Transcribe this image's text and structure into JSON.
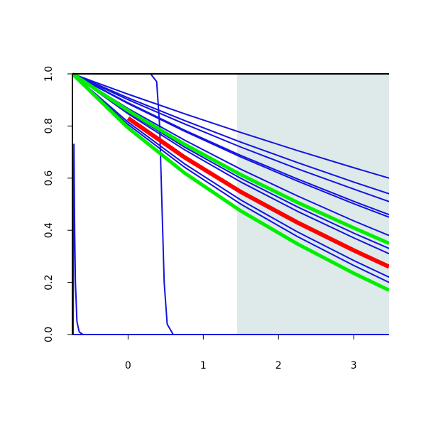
{
  "chart_data": {
    "type": "line",
    "xlim": [
      -0.74,
      3.47
    ],
    "ylim": [
      0,
      1
    ],
    "xticks": [
      0,
      1,
      2,
      3
    ],
    "yticks": [
      {
        "value": 0,
        "label": "0.0"
      },
      {
        "value": 0.2,
        "label": "0.2"
      },
      {
        "value": 0.4,
        "label": "0.4"
      },
      {
        "value": 0.6,
        "label": "0.6"
      },
      {
        "value": 0.8,
        "label": "0.8"
      },
      {
        "value": 1,
        "label": "1.0"
      }
    ],
    "shade_xlim": [
      1.45,
      3.47
    ],
    "shade_color": "#deeaea",
    "x": [
      -0.74,
      0,
      0.75,
      1.5,
      2.25,
      3,
      3.47
    ],
    "series": [
      {
        "color": "#1414e0",
        "width": 2,
        "values": [
          1,
          0.922,
          0.847,
          0.775,
          0.706,
          0.64,
          0.6
        ]
      },
      {
        "color": "#1414e0",
        "width": 2,
        "values": [
          1,
          0.908,
          0.821,
          0.738,
          0.66,
          0.585,
          0.54
        ]
      },
      {
        "color": "#1414e0",
        "width": 2,
        "values": [
          1,
          0.901,
          0.808,
          0.719,
          0.636,
          0.558,
          0.51
        ]
      },
      {
        "color": "#1414e0",
        "width": 2,
        "values": [
          1,
          0.889,
          0.784,
          0.687,
          0.597,
          0.511,
          0.46
        ]
      },
      {
        "color": "#1414e0",
        "width": 2,
        "values": [
          1,
          0.886,
          0.78,
          0.681,
          0.589,
          0.502,
          0.45
        ]
      },
      {
        "color": "#1414e0",
        "width": 2,
        "values": [
          1,
          0.867,
          0.746,
          0.634,
          0.532,
          0.436,
          0.38
        ]
      },
      {
        "color": "#1414e0",
        "width": 2,
        "values": [
          1,
          0.853,
          0.719,
          0.599,
          0.49,
          0.389,
          0.33
        ]
      },
      {
        "color": "#1414e0",
        "width": 2,
        "values": [
          1,
          0.847,
          0.709,
          0.585,
          0.473,
          0.371,
          0.31
        ]
      },
      {
        "color": "#1414e0",
        "width": 2,
        "values": [
          1,
          0.815,
          0.655,
          0.516,
          0.394,
          0.284,
          0.22
        ]
      },
      {
        "color": "#1414e0",
        "width": 2,
        "values": [
          1,
          0.806,
          0.642,
          0.5,
          0.376,
          0.265,
          0.2
        ]
      },
      {
        "color": "#1414e0",
        "width": 2,
        "values": [
          0,
          0,
          0,
          0,
          0,
          0,
          0
        ]
      },
      {
        "color": "#1414e0",
        "width": 2,
        "x": [
          -0.74,
          0.3,
          0.38,
          0.42,
          0.45,
          0.48,
          0.52,
          0.6,
          3.47
        ],
        "values": [
          1,
          1,
          0.97,
          0.8,
          0.5,
          0.2,
          0.04,
          0,
          0
        ]
      },
      {
        "color": "#1414e0",
        "width": 2,
        "x": [
          -0.73,
          -0.72,
          -0.71,
          -0.7,
          -0.68,
          -0.65,
          -0.6,
          3.47
        ],
        "values": [
          0,
          0.73,
          0.4,
          0.2,
          0.05,
          0.01,
          0,
          0
        ]
      },
      {
        "color": "#00ee00",
        "width": 5,
        "values": [
          1,
          0.859,
          0.73,
          0.613,
          0.507,
          0.409,
          0.35
        ]
      },
      {
        "color": "#00ee00",
        "width": 5,
        "values": [
          1,
          0.793,
          0.62,
          0.474,
          0.348,
          0.235,
          0.17
        ]
      },
      {
        "color": "#ff0000",
        "width": 6,
        "values": [
          null,
          0.83,
          0.68,
          0.547,
          0.43,
          0.323,
          0.26
        ]
      }
    ]
  }
}
